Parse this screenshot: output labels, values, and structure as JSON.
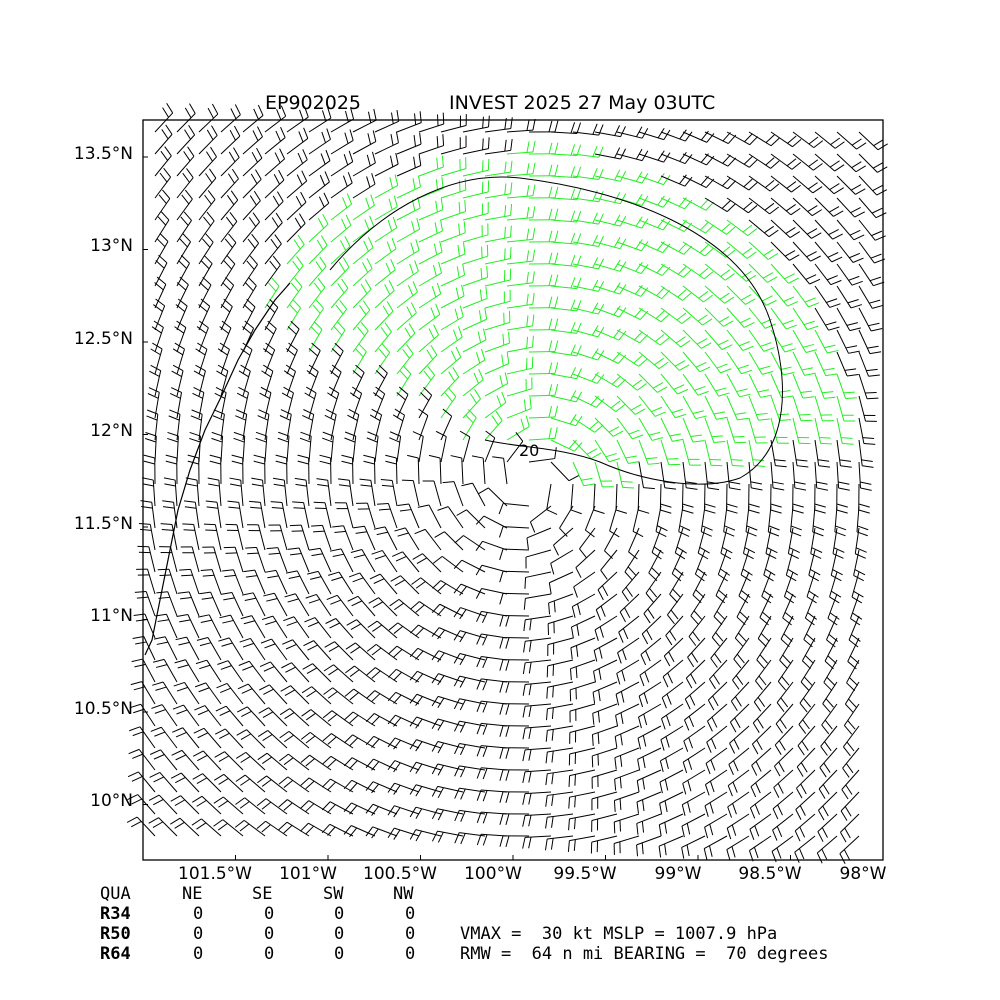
{
  "title_left": "EP902025",
  "title_right": "INVEST 2025 27 May 03UTC",
  "map": {
    "lat_range": [
      9.7,
      13.7
    ],
    "lon_range": [
      -102.0,
      -98.0
    ],
    "lat_ticks": [
      "13.5°N",
      "13°N",
      "12.5°N",
      "12°N",
      "11.5°N",
      "11°N",
      "10.5°N",
      "10°N"
    ],
    "lon_ticks": [
      "101.5°W",
      "101°W",
      "100.5°W",
      "100°W",
      "99.5°W",
      "99°W",
      "98.5°W",
      "98°W"
    ],
    "contour_label": "20",
    "highlight_color": "#22ee22",
    "barb_color": "#000000",
    "center": {
      "lat": 11.75,
      "lon": -99.9
    }
  },
  "table": {
    "header": [
      "QUA",
      "NE",
      "SE",
      "SW",
      "NW"
    ],
    "rows": [
      {
        "label": "R34",
        "values": [
          "0",
          "0",
          "0",
          "0"
        ]
      },
      {
        "label": "R50",
        "values": [
          "0",
          "0",
          "0",
          "0"
        ]
      },
      {
        "label": "R64",
        "values": [
          "0",
          "0",
          "0",
          "0"
        ]
      }
    ]
  },
  "stats": {
    "line1": "VMAX =  30 kt MSLP = 1007.9 hPa",
    "line2": "RMW =  64 n mi BEARING =  70 degrees"
  }
}
